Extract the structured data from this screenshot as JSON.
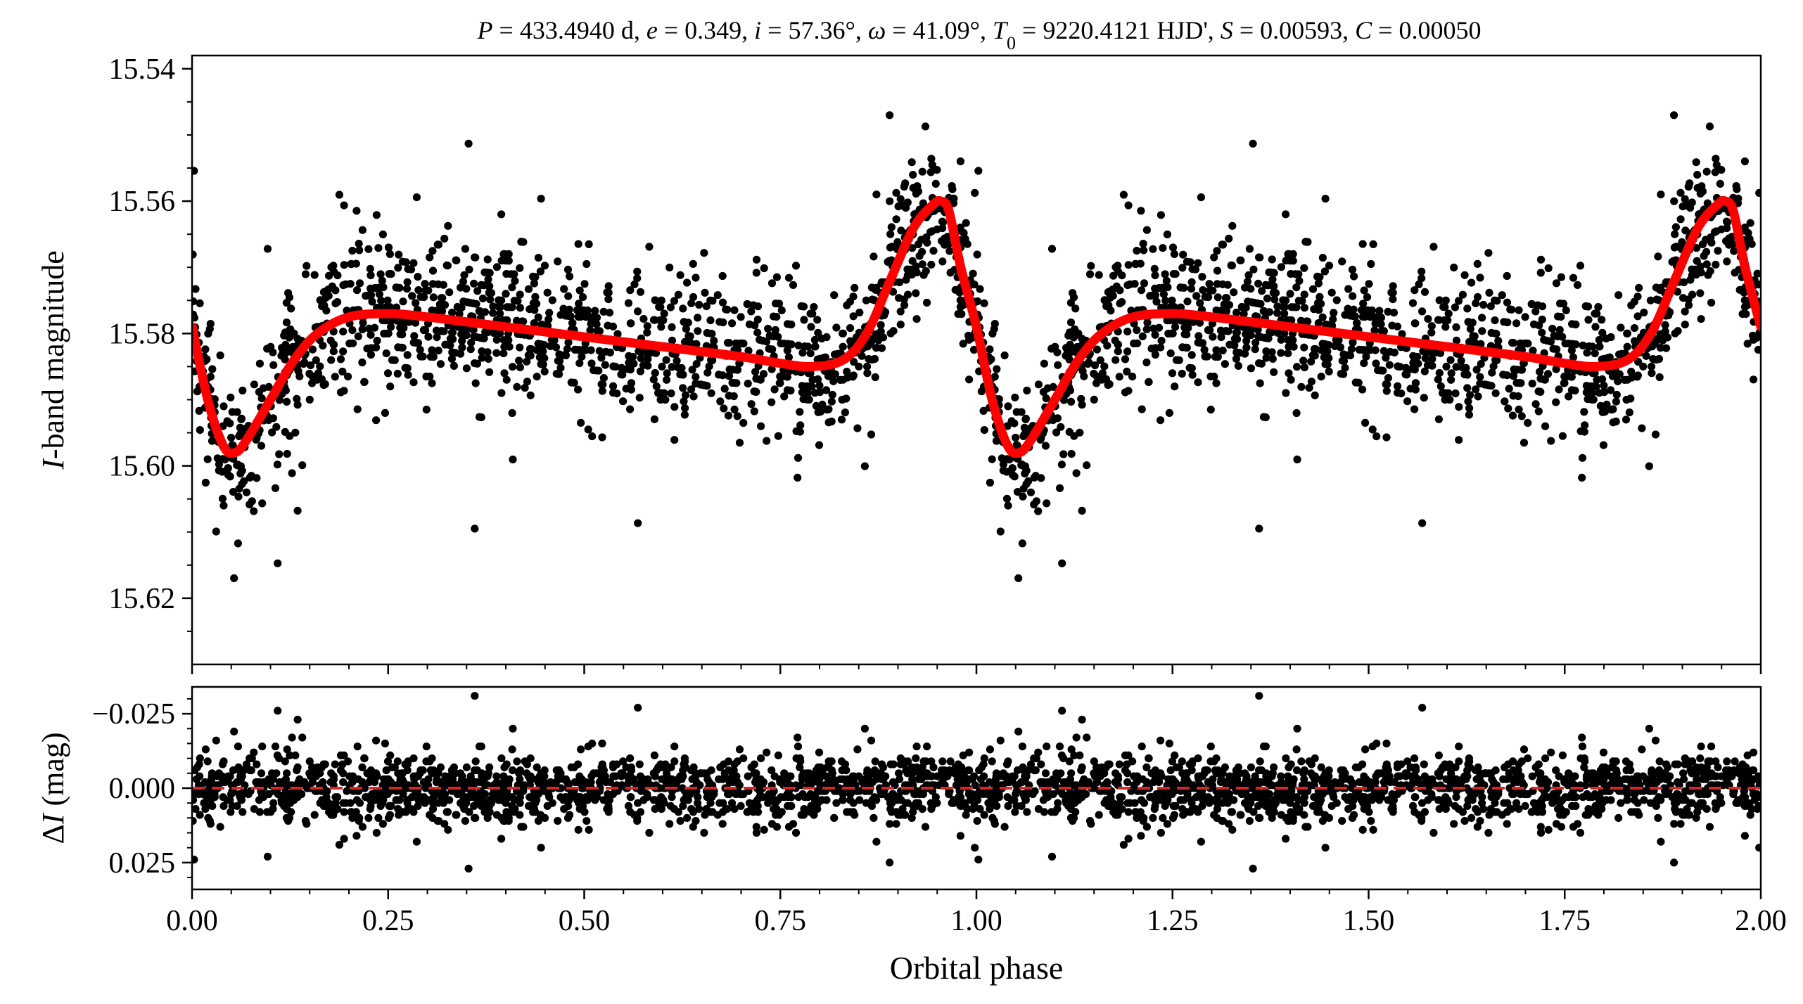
{
  "chart_data": [
    {
      "type": "scatter",
      "panel": "top",
      "title": "P = 433.4940 d, e = 0.349, i = 57.36°, ω = 41.09°, T0 = 9220.4121 HJD', S = 0.00593, C = 0.00050",
      "title_parts": [
        {
          "t": "P",
          "i": true
        },
        {
          "t": " = 433.4940 d, "
        },
        {
          "t": "e",
          "i": true
        },
        {
          "t": " = 0.349, "
        },
        {
          "t": "i",
          "i": true
        },
        {
          "t": " = 57.36°, "
        },
        {
          "t": "ω",
          "i": true
        },
        {
          "t": " = 41.09°, "
        },
        {
          "t": "T",
          "i": true
        },
        {
          "t": "0",
          "sub": true
        },
        {
          "t": " = 9220.4121 HJD', "
        },
        {
          "t": "S",
          "i": true
        },
        {
          "t": " = 0.00593, "
        },
        {
          "t": "C",
          "i": true
        },
        {
          "t": " = 0.00050"
        }
      ],
      "ylabel": "I-band magnitude",
      "ylabel_italic": "I",
      "ylabel_rest": "-band magnitude",
      "xlim": [
        0.0,
        2.0
      ],
      "ylim": [
        15.63,
        15.538
      ],
      "y_inverted": true,
      "yticks": [
        "15.54",
        "15.56",
        "15.58",
        "15.60",
        "15.62"
      ],
      "grid": false,
      "series": [
        {
          "kind": "observations",
          "color": "#000000",
          "points_per_cycle_approx": 1400,
          "points_repeated_over": [
            0.0,
            2.0
          ]
        },
        {
          "kind": "model",
          "color": "#ff0000",
          "curve": [
            [
              0.0,
              15.579
            ],
            [
              0.02,
              15.59
            ],
            [
              0.04,
              15.597
            ],
            [
              0.055,
              15.598
            ],
            [
              0.07,
              15.596
            ],
            [
              0.1,
              15.59
            ],
            [
              0.13,
              15.584
            ],
            [
              0.16,
              15.58
            ],
            [
              0.2,
              15.5775
            ],
            [
              0.25,
              15.577
            ],
            [
              0.3,
              15.5775
            ],
            [
              0.4,
              15.579
            ],
            [
              0.5,
              15.5805
            ],
            [
              0.6,
              15.582
            ],
            [
              0.7,
              15.5835
            ],
            [
              0.75,
              15.5845
            ],
            [
              0.79,
              15.585
            ],
            [
              0.83,
              15.584
            ],
            [
              0.86,
              15.58
            ],
            [
              0.89,
              15.572
            ],
            [
              0.92,
              15.564
            ],
            [
              0.945,
              15.5605
            ],
            [
              0.955,
              15.56
            ],
            [
              0.965,
              15.5615
            ],
            [
              0.98,
              15.57
            ],
            [
              1.0,
              15.579
            ],
            [
              1.02,
              15.59
            ],
            [
              1.04,
              15.597
            ],
            [
              1.055,
              15.598
            ],
            [
              1.07,
              15.596
            ],
            [
              1.1,
              15.59
            ],
            [
              1.13,
              15.584
            ],
            [
              1.16,
              15.58
            ],
            [
              1.2,
              15.5775
            ],
            [
              1.25,
              15.577
            ],
            [
              1.3,
              15.5775
            ],
            [
              1.4,
              15.579
            ],
            [
              1.5,
              15.5805
            ],
            [
              1.6,
              15.582
            ],
            [
              1.7,
              15.5835
            ],
            [
              1.75,
              15.5845
            ],
            [
              1.79,
              15.585
            ],
            [
              1.83,
              15.584
            ],
            [
              1.86,
              15.58
            ],
            [
              1.89,
              15.572
            ],
            [
              1.92,
              15.564
            ],
            [
              1.945,
              15.5605
            ],
            [
              1.955,
              15.56
            ],
            [
              1.965,
              15.5615
            ],
            [
              1.98,
              15.57
            ],
            [
              2.0,
              15.579
            ]
          ]
        }
      ]
    },
    {
      "type": "scatter",
      "panel": "bottom",
      "xlabel": "Orbital phase",
      "ylabel": "ΔI (mag)",
      "ylabel_prefix": "Δ",
      "ylabel_italic": "I",
      "ylabel_rest": " (mag)",
      "xlim": [
        0.0,
        2.0
      ],
      "ylim": [
        0.034,
        -0.034
      ],
      "y_inverted": true,
      "xticks": [
        "0.00",
        "0.25",
        "0.50",
        "0.75",
        "1.00",
        "1.25",
        "1.50",
        "1.75",
        "2.00"
      ],
      "yticks": [
        "−0.025",
        "0.000",
        "0.025"
      ],
      "grid": false,
      "series": [
        {
          "kind": "residuals",
          "color": "#000000",
          "scatter_sd_mag": 0.0055
        },
        {
          "kind": "zero-line",
          "color": "#d62728",
          "style": "dashed",
          "y": 0.0
        }
      ]
    }
  ]
}
